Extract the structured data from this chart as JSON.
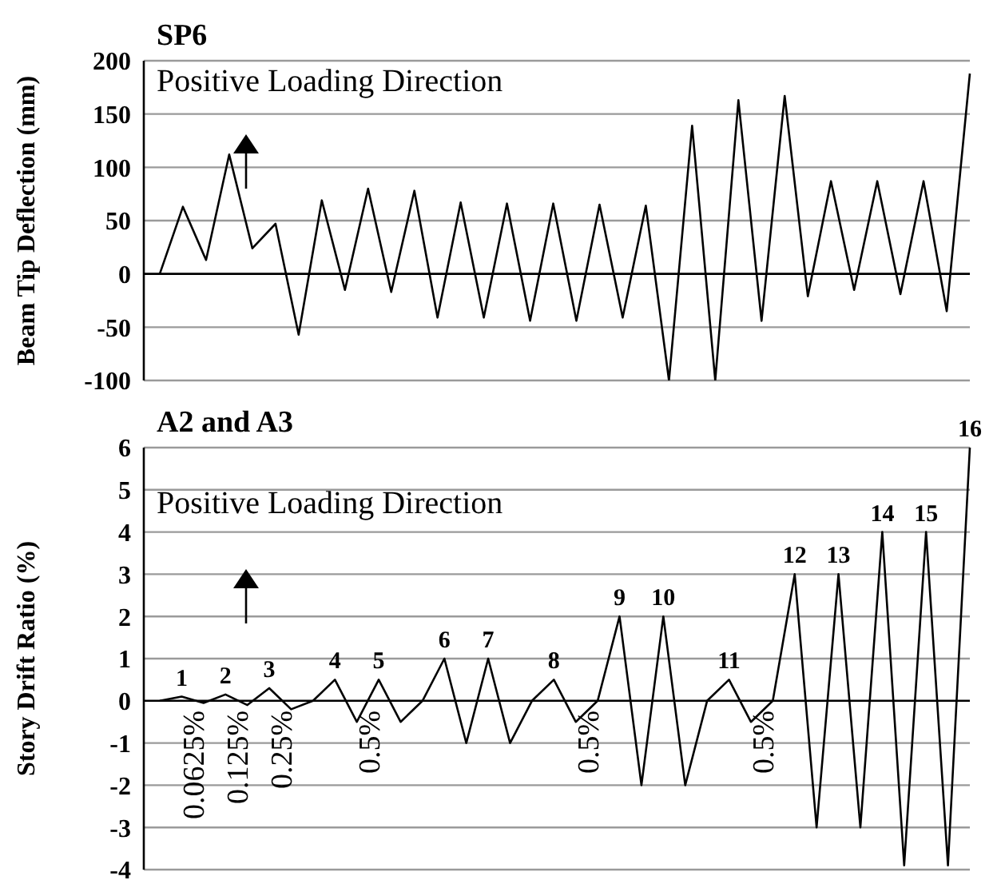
{
  "chart_data": [
    {
      "type": "line",
      "title": "SP6",
      "ylabel": "Beam Tip Deflection (mm)",
      "annotations": [
        "Positive Loading Direction"
      ],
      "categories": [
        null,
        null,
        null,
        null,
        null,
        null,
        null,
        null,
        null,
        null,
        null,
        null,
        null,
        null,
        null,
        null,
        null,
        null,
        null,
        null,
        null,
        null,
        null,
        null,
        null,
        null,
        null,
        null,
        null,
        null,
        null,
        null,
        null,
        null,
        null,
        null
      ],
      "series": [
        {
          "color": "#000000",
          "values": [
            0,
            63,
            13,
            112,
            24,
            47,
            -57,
            69,
            -15,
            80,
            -17,
            78,
            -41,
            67,
            -41,
            66,
            -44,
            66,
            -44,
            65,
            -41,
            64,
            -100,
            139,
            -100,
            163,
            -44,
            167,
            -21,
            87,
            -15,
            87,
            -19,
            87,
            -35,
            188
          ]
        }
      ],
      "ylim": [
        -100,
        200
      ],
      "yticks": [
        -100,
        -50,
        0,
        50,
        100,
        150,
        200
      ],
      "grid": "y",
      "legend": false,
      "marker": "none",
      "line_style": "solid"
    },
    {
      "type": "line",
      "title": "A2 and A3",
      "ylabel": "Story Drift Ratio (%)",
      "annotations": [
        "Positive Loading Direction",
        "0.0625%",
        "0.125%",
        "0.25%",
        "0.5%",
        "0.5%",
        "0.5%",
        "1",
        "2",
        "3",
        "4",
        "5",
        "6",
        "7",
        "8",
        "9",
        "10",
        "11",
        "12",
        "13",
        "14",
        "15",
        "16"
      ],
      "categories": [
        null,
        null,
        null,
        null,
        null,
        null,
        null,
        null,
        null,
        null,
        null,
        null,
        null,
        null,
        null,
        null,
        null,
        null,
        null,
        null,
        null,
        null,
        null,
        null,
        null,
        null,
        null,
        null,
        null,
        null,
        null,
        null,
        null,
        null,
        null,
        null,
        null,
        null
      ],
      "series": [
        {
          "color": "#000000",
          "values": [
            0,
            0.1,
            -0.05,
            0.15,
            -0.1,
            0.3,
            -0.2,
            0,
            0.5,
            -0.5,
            0.5,
            -0.5,
            0,
            1,
            -1,
            1,
            -1,
            0,
            0.5,
            -0.5,
            0,
            2,
            -2,
            2,
            -2,
            0,
            0.5,
            -0.5,
            0,
            3,
            -3,
            3,
            -3,
            4,
            -3.9,
            4,
            -3.9,
            6
          ]
        }
      ],
      "ylim": [
        -4,
        6
      ],
      "yticks": [
        -4,
        -3,
        -2,
        -1,
        0,
        1,
        2,
        3,
        4,
        5,
        6
      ],
      "grid": "y",
      "legend": false,
      "marker": "none",
      "line_style": "solid"
    }
  ]
}
